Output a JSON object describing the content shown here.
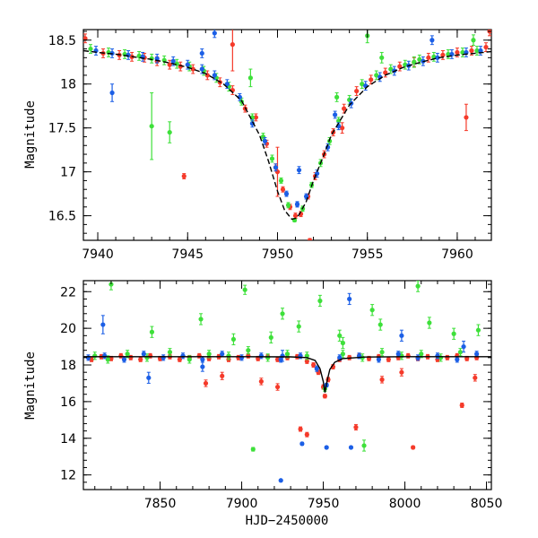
{
  "colors": {
    "red": "#f53a2a",
    "green": "#3ee03a",
    "blue": "#1c5fe6",
    "curve": "#000000"
  },
  "chart_data": [
    {
      "type": "scatter",
      "panel": "top",
      "title": "",
      "xlabel": "",
      "ylabel": "Magnitude",
      "xlim": [
        7939.2,
        7961.9
      ],
      "ylim": [
        18.62,
        16.22
      ],
      "y_inverted": true,
      "xticks": [
        7940,
        7945,
        7950,
        7955,
        7960
      ],
      "yticks": [
        16.5,
        17,
        17.5,
        18,
        18.5
      ],
      "ytick_labels": [
        "16.5",
        "17",
        "17.5",
        "18",
        "18.5"
      ],
      "grid": false,
      "model_curve": {
        "name": "",
        "color": "#000000",
        "x": [
          7939.2,
          7940,
          7941,
          7942,
          7943,
          7944,
          7945,
          7946,
          7947,
          7948,
          7949,
          7949.5,
          7950,
          7950.4,
          7950.8,
          7951,
          7951.2,
          7951.6,
          7952,
          7952.5,
          7953,
          7954,
          7955,
          7956,
          7957,
          7958,
          7959,
          7960,
          7961,
          7961.9
        ],
        "y": [
          18.38,
          18.36,
          18.34,
          18.31,
          18.28,
          18.24,
          18.19,
          18.12,
          18.0,
          17.81,
          17.42,
          17.12,
          16.78,
          16.56,
          16.46,
          16.47,
          16.51,
          16.66,
          16.9,
          17.15,
          17.42,
          17.76,
          17.97,
          18.1,
          18.19,
          18.25,
          18.3,
          18.33,
          18.35,
          18.37
        ]
      },
      "series": [
        {
          "color": "red",
          "x": [
            7939.3,
            7940.3,
            7941.2,
            7941.9,
            7942.6,
            7943.3,
            7944.0,
            7944.6,
            7945.3,
            7946.1,
            7946.8,
            7947.5,
            7948.2,
            7948.8,
            7949.4,
            7949.9,
            7950.3,
            7950.7,
            7951.0,
            7951.3,
            7951.7,
            7952.1,
            7952.6,
            7953.1,
            7953.7,
            7954.4,
            7955.2,
            7956.0,
            7956.8,
            7957.6,
            7958.4,
            7959.2,
            7960.0,
            7960.8,
            7961.6,
            7944.8,
            7947.5,
            7950.0,
            7951.8,
            7953.6,
            7960.5,
            7961.8
          ],
          "y": [
            18.52,
            18.35,
            18.33,
            18.31,
            18.3,
            18.26,
            18.22,
            18.2,
            18.17,
            18.1,
            18.02,
            17.93,
            17.72,
            17.62,
            17.32,
            17.05,
            16.8,
            16.6,
            16.5,
            16.52,
            16.72,
            16.95,
            17.2,
            17.45,
            17.72,
            17.92,
            18.05,
            18.13,
            18.2,
            18.25,
            18.3,
            18.33,
            18.36,
            18.38,
            18.42,
            16.95,
            18.45,
            17.0,
            16.22,
            17.5,
            17.62,
            18.6
          ],
          "err": [
            0.05,
            0.05,
            0.05,
            0.05,
            0.05,
            0.05,
            0.05,
            0.05,
            0.05,
            0.05,
            0.05,
            0.05,
            0.04,
            0.04,
            0.04,
            0.04,
            0.03,
            0.03,
            0.03,
            0.03,
            0.03,
            0.04,
            0.04,
            0.04,
            0.05,
            0.05,
            0.05,
            0.05,
            0.05,
            0.05,
            0.05,
            0.05,
            0.05,
            0.05,
            0.05,
            0.03,
            0.3,
            0.28,
            0.02,
            0.06,
            0.15,
            0.05
          ]
        },
        {
          "color": "green",
          "x": [
            7939.6,
            7940.6,
            7941.5,
            7942.3,
            7943.0,
            7943.7,
            7944.4,
            7945.1,
            7945.9,
            7946.6,
            7947.3,
            7948.0,
            7948.6,
            7949.2,
            7949.7,
            7950.2,
            7950.6,
            7950.95,
            7951.4,
            7951.9,
            7952.4,
            7952.9,
            7953.4,
            7954.0,
            7954.7,
            7955.5,
            7956.3,
            7957.1,
            7957.9,
            7958.7,
            7959.5,
            7960.3,
            7961.1,
            7943.0,
            7944.0,
            7948.5,
            7953.3,
            7955.0,
            7955.8,
            7957.6,
            7960.9
          ],
          "y": [
            18.4,
            18.36,
            18.34,
            18.32,
            18.29,
            18.27,
            18.23,
            18.2,
            18.15,
            18.07,
            17.97,
            17.8,
            17.62,
            17.4,
            17.15,
            16.9,
            16.62,
            16.45,
            16.58,
            16.85,
            17.1,
            17.35,
            17.58,
            17.82,
            18.0,
            18.1,
            18.17,
            18.22,
            18.28,
            18.31,
            18.34,
            18.36,
            18.38,
            17.52,
            17.45,
            18.07,
            17.85,
            18.55,
            18.3,
            18.25,
            18.5
          ],
          "err": [
            0.05,
            0.05,
            0.05,
            0.05,
            0.05,
            0.05,
            0.05,
            0.05,
            0.05,
            0.05,
            0.05,
            0.04,
            0.04,
            0.04,
            0.04,
            0.03,
            0.03,
            0.02,
            0.03,
            0.03,
            0.04,
            0.04,
            0.04,
            0.05,
            0.05,
            0.05,
            0.05,
            0.05,
            0.05,
            0.05,
            0.05,
            0.05,
            0.05,
            0.38,
            0.12,
            0.1,
            0.05,
            0.08,
            0.06,
            0.06,
            0.06
          ]
        },
        {
          "color": "blue",
          "x": [
            7939.9,
            7940.8,
            7941.7,
            7942.5,
            7943.3,
            7944.2,
            7945.0,
            7945.8,
            7946.5,
            7947.2,
            7947.9,
            7948.6,
            7949.3,
            7949.9,
            7950.5,
            7951.1,
            7951.6,
            7952.2,
            7952.8,
            7953.4,
            7954.1,
            7954.9,
            7955.7,
            7956.5,
            7957.3,
            7958.1,
            7958.9,
            7959.7,
            7960.5,
            7961.3,
            7940.8,
            7945.8,
            7946.5,
            7951.1,
            7951.2,
            7953.2,
            7958.6
          ],
          "y": [
            18.38,
            18.35,
            18.33,
            18.31,
            18.29,
            18.26,
            18.22,
            18.17,
            18.1,
            18.0,
            17.85,
            17.55,
            17.35,
            17.05,
            16.75,
            16.63,
            16.72,
            16.98,
            17.28,
            17.52,
            17.78,
            17.98,
            18.08,
            18.15,
            18.21,
            18.26,
            18.3,
            18.34,
            18.36,
            18.38,
            17.9,
            18.35,
            18.58,
            16.63,
            17.02,
            17.65,
            18.5
          ],
          "err": [
            0.05,
            0.05,
            0.05,
            0.05,
            0.05,
            0.05,
            0.05,
            0.05,
            0.05,
            0.05,
            0.04,
            0.04,
            0.04,
            0.04,
            0.03,
            0.03,
            0.03,
            0.04,
            0.04,
            0.04,
            0.05,
            0.05,
            0.05,
            0.05,
            0.05,
            0.05,
            0.05,
            0.05,
            0.05,
            0.05,
            0.1,
            0.05,
            0.05,
            0.03,
            0.04,
            0.04,
            0.05
          ]
        }
      ]
    },
    {
      "type": "scatter",
      "panel": "bottom",
      "title": "",
      "xlabel": "HJD−2450000",
      "ylabel": "Magnitude",
      "xlim": [
        7803,
        8053
      ],
      "ylim": [
        22.6,
        11.2
      ],
      "y_inverted": true,
      "xticks": [
        7850,
        7900,
        7950,
        8000,
        8050
      ],
      "yticks": [
        12,
        14,
        16,
        18,
        20,
        22
      ],
      "grid": false,
      "model_curve": {
        "name": "",
        "color": "#000000",
        "x": [
          7803,
          7900,
          7930,
          7940,
          7945,
          7948,
          7950,
          7951,
          7952,
          7954,
          7957,
          7962,
          7975,
          8000,
          8053
        ],
        "y": [
          18.45,
          18.45,
          18.44,
          18.4,
          18.25,
          17.8,
          17.1,
          16.5,
          17.0,
          17.75,
          18.15,
          18.35,
          18.43,
          18.45,
          18.45
        ]
      },
      "series": [
        {
          "color": "red",
          "x": [
            7808,
            7814,
            7820,
            7826,
            7832,
            7838,
            7844,
            7850,
            7856,
            7862,
            7868,
            7874,
            7880,
            7886,
            7892,
            7898,
            7904,
            7910,
            7916,
            7922,
            7928,
            7934,
            7940,
            7944,
            7947,
            7950,
            7951,
            7953,
            7956,
            7960,
            7966,
            7972,
            7978,
            7984,
            7990,
            7996,
            8002,
            8008,
            8014,
            8020,
            8026,
            8032,
            8038,
            8044,
            7936,
            7940,
            7970,
            8005,
            8035,
            7878,
            7888,
            7912,
            7922,
            7986,
            7998,
            8043
          ],
          "y": [
            18.3,
            18.45,
            18.35,
            18.5,
            18.4,
            18.3,
            18.5,
            18.35,
            18.45,
            18.3,
            18.4,
            18.5,
            18.35,
            18.45,
            18.3,
            18.4,
            18.5,
            18.35,
            18.45,
            18.3,
            18.4,
            18.45,
            18.2,
            18.0,
            17.6,
            16.8,
            16.3,
            17.2,
            17.9,
            18.3,
            18.4,
            18.5,
            18.35,
            18.45,
            18.3,
            18.4,
            18.5,
            18.35,
            18.45,
            18.3,
            18.4,
            18.5,
            18.35,
            18.4,
            14.5,
            14.2,
            14.6,
            13.5,
            15.8,
            17.0,
            17.4,
            17.1,
            16.8,
            17.2,
            17.6,
            17.3
          ],
          "err": [
            0.12,
            0.12,
            0.12,
            0.12,
            0.12,
            0.12,
            0.12,
            0.12,
            0.12,
            0.12,
            0.12,
            0.12,
            0.12,
            0.12,
            0.12,
            0.12,
            0.12,
            0.12,
            0.12,
            0.12,
            0.12,
            0.12,
            0.12,
            0.12,
            0.12,
            0.12,
            0.1,
            0.12,
            0.12,
            0.12,
            0.12,
            0.12,
            0.12,
            0.12,
            0.12,
            0.12,
            0.12,
            0.12,
            0.12,
            0.12,
            0.12,
            0.12,
            0.12,
            0.12,
            0.12,
            0.12,
            0.15,
            0.08,
            0.12,
            0.18,
            0.2,
            0.18,
            0.18,
            0.18,
            0.2,
            0.18
          ]
        },
        {
          "color": "green",
          "x": [
            7810,
            7818,
            7830,
            7842,
            7856,
            7868,
            7880,
            7892,
            7904,
            7916,
            7928,
            7940,
            7951,
            7962,
            7974,
            7986,
            7998,
            8010,
            8022,
            8034,
            7907,
            7902,
            7918,
            7948,
            7962,
            7975,
            7985,
            8008,
            7820,
            7845,
            7875,
            7895,
            7925,
            7935,
            7960,
            7980,
            8015,
            8030,
            8045
          ],
          "y": [
            18.5,
            18.3,
            18.6,
            18.4,
            18.7,
            18.3,
            18.6,
            18.5,
            18.8,
            18.4,
            18.6,
            18.5,
            16.7,
            18.6,
            18.4,
            18.7,
            18.5,
            18.6,
            18.4,
            18.7,
            13.4,
            22.1,
            19.5,
            21.5,
            19.2,
            13.6,
            20.2,
            22.3,
            22.4,
            19.8,
            20.5,
            19.4,
            20.8,
            20.1,
            19.6,
            21.0,
            20.3,
            19.7,
            19.9
          ],
          "err": [
            0.2,
            0.2,
            0.2,
            0.2,
            0.2,
            0.2,
            0.2,
            0.2,
            0.2,
            0.2,
            0.2,
            0.2,
            0.15,
            0.2,
            0.2,
            0.2,
            0.2,
            0.2,
            0.2,
            0.2,
            0.1,
            0.25,
            0.3,
            0.3,
            0.3,
            0.3,
            0.3,
            0.3,
            0.3,
            0.3,
            0.3,
            0.3,
            0.3,
            0.3,
            0.3,
            0.3,
            0.3,
            0.3,
            0.3
          ]
        },
        {
          "color": "blue",
          "x": [
            7806,
            7816,
            7828,
            7840,
            7852,
            7864,
            7876,
            7888,
            7900,
            7912,
            7924,
            7936,
            7946,
            7952,
            7960,
            7972,
            7984,
            7996,
            8008,
            8020,
            8032,
            8044,
            7924,
            7937,
            7952,
            7967,
            7815,
            7843,
            7876,
            7925,
            7966,
            7998,
            8036
          ],
          "y": [
            18.4,
            18.5,
            18.3,
            18.6,
            18.4,
            18.5,
            18.3,
            18.6,
            18.4,
            18.5,
            18.3,
            18.5,
            17.8,
            16.9,
            18.4,
            18.5,
            18.3,
            18.6,
            18.4,
            18.5,
            18.3,
            18.6,
            11.7,
            13.7,
            13.5,
            13.5,
            20.2,
            17.3,
            17.9,
            18.5,
            21.6,
            19.6,
            19.0
          ],
          "err": [
            0.15,
            0.15,
            0.15,
            0.15,
            0.15,
            0.15,
            0.15,
            0.15,
            0.15,
            0.15,
            0.15,
            0.15,
            0.15,
            0.1,
            0.15,
            0.15,
            0.15,
            0.15,
            0.15,
            0.15,
            0.15,
            0.15,
            0.05,
            0.08,
            0.06,
            0.06,
            0.5,
            0.3,
            0.25,
            0.3,
            0.3,
            0.3,
            0.3
          ]
        }
      ]
    }
  ]
}
